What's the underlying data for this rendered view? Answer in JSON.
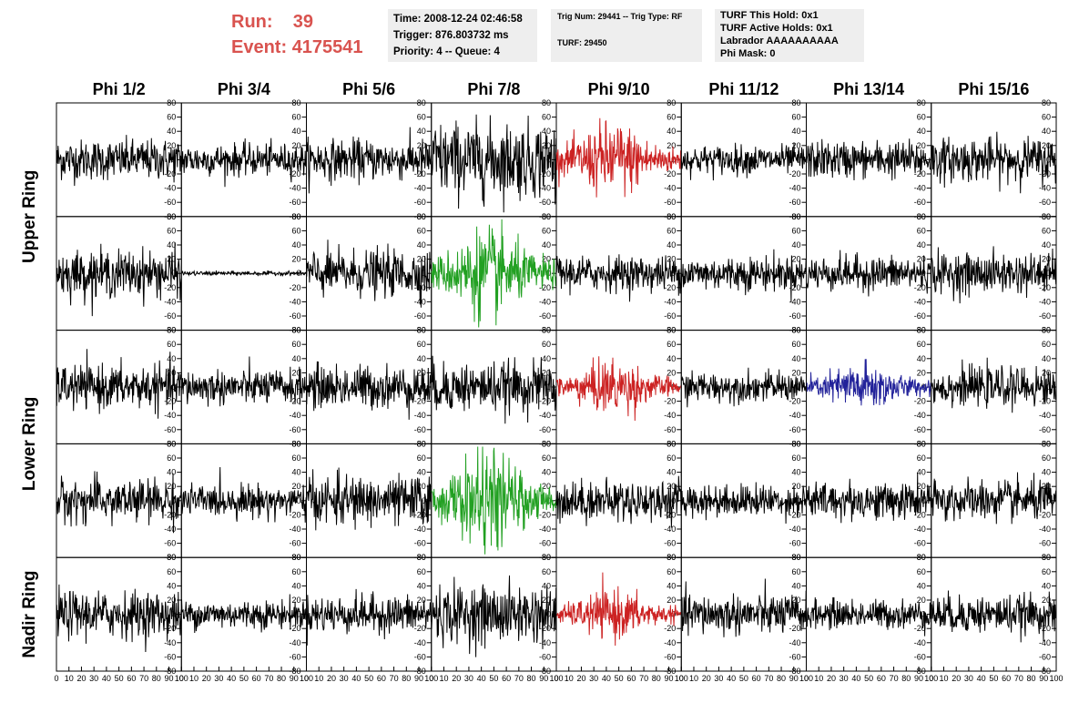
{
  "header": {
    "run_label": "Run:",
    "run_value": "39",
    "event_label": "Event:",
    "event_value": "4175541",
    "time": "Time: 2008-12-24 02:46:58",
    "trigger": "Trigger: 876.803732 ms",
    "priority": "Priority: 4 -- Queue: 4",
    "trig_num": "Trig Num: 29441 -- Trig Type: RF",
    "turf": "TURF: 29450",
    "turf_this_hold": "TURF This Hold: 0x1",
    "turf_active_holds": "TURF Active Holds: 0x1",
    "labrador": "Labrador AAAAAAAAAA",
    "phi_mask": "Phi Mask: 0"
  },
  "chart_data": {
    "type": "line",
    "columns": [
      "Phi 1/2",
      "Phi 3/4",
      "Phi 5/6",
      "Phi 7/8",
      "Phi 9/10",
      "Phi 11/12",
      "Phi 13/14",
      "Phi 15/16"
    ],
    "ring_labels": [
      "Upper Ring",
      "Lower Ring",
      "Nadir Ring"
    ],
    "ylim": [
      -80,
      80
    ],
    "xlim": [
      0,
      100
    ],
    "y_ticks": [
      "-80",
      "-60",
      "-40",
      "-20",
      "0",
      "20",
      "40",
      "60",
      "80"
    ],
    "x_ticks": [
      "0",
      "10",
      "20",
      "30",
      "40",
      "50",
      "60",
      "70",
      "80",
      "90",
      "100"
    ],
    "colors": {
      "default": "#000000",
      "red": "#cc2222",
      "green": "#22a022",
      "blue": "#22229a"
    },
    "panels": [
      [
        {
          "color": "default",
          "amp": 14
        },
        {
          "color": "default",
          "amp": 11
        },
        {
          "color": "default",
          "amp": 14
        },
        {
          "color": "default",
          "amp": 26
        },
        {
          "color": "red",
          "amp": 22,
          "burst": true
        },
        {
          "color": "default",
          "amp": 10
        },
        {
          "color": "default",
          "amp": 13
        },
        {
          "color": "default",
          "amp": 15
        }
      ],
      [
        {
          "color": "default",
          "amp": 16
        },
        {
          "color": "default",
          "amp": 1.5
        },
        {
          "color": "default",
          "amp": 16
        },
        {
          "color": "green",
          "amp": 26,
          "burst": true
        },
        {
          "color": "default",
          "amp": 12
        },
        {
          "color": "default",
          "amp": 12
        },
        {
          "color": "default",
          "amp": 12
        },
        {
          "color": "default",
          "amp": 14
        }
      ],
      [
        {
          "color": "default",
          "amp": 15
        },
        {
          "color": "default",
          "amp": 12
        },
        {
          "color": "default",
          "amp": 15
        },
        {
          "color": "default",
          "amp": 17
        },
        {
          "color": "red",
          "amp": 16,
          "burst": true
        },
        {
          "color": "default",
          "amp": 10
        },
        {
          "color": "blue",
          "amp": 14,
          "burst": true
        },
        {
          "color": "default",
          "amp": 13
        }
      ],
      [
        {
          "color": "default",
          "amp": 15
        },
        {
          "color": "default",
          "amp": 11
        },
        {
          "color": "default",
          "amp": 17
        },
        {
          "color": "green",
          "amp": 28,
          "burst": true
        },
        {
          "color": "default",
          "amp": 14
        },
        {
          "color": "default",
          "amp": 11
        },
        {
          "color": "default",
          "amp": 13
        },
        {
          "color": "default",
          "amp": 14
        }
      ],
      [
        {
          "color": "default",
          "amp": 16
        },
        {
          "color": "default",
          "amp": 10
        },
        {
          "color": "default",
          "amp": 13
        },
        {
          "color": "default",
          "amp": 20
        },
        {
          "color": "red",
          "amp": 14,
          "burst": true
        },
        {
          "color": "default",
          "amp": 14
        },
        {
          "color": "default",
          "amp": 10
        },
        {
          "color": "default",
          "amp": 13
        }
      ]
    ]
  }
}
